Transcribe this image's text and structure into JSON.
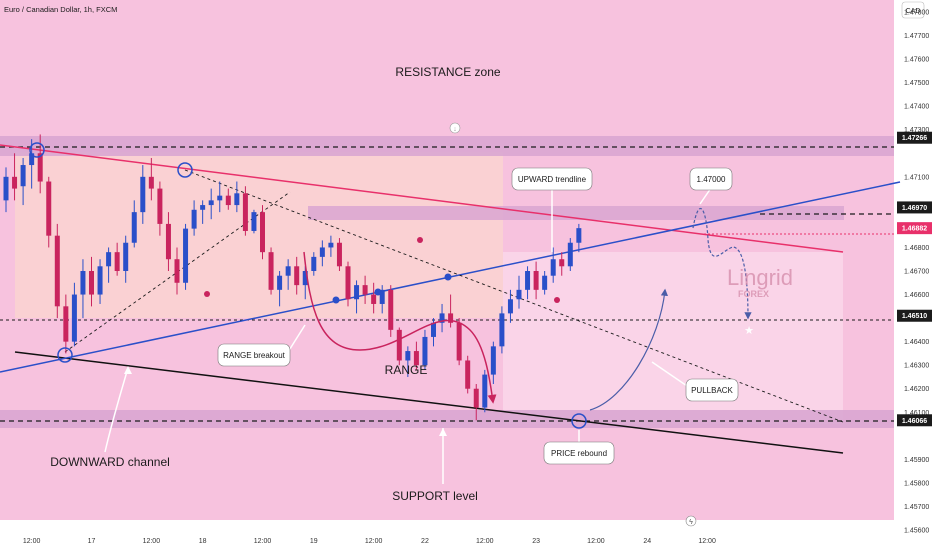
{
  "chart_data": {
    "type": "candlestick",
    "title": "Euro / Canadian Dollar, 1h, FXCM",
    "currency": "CAD",
    "watermark": {
      "brand": "Lingrid",
      "sub": "FOREX"
    },
    "ylim": [
      1.456,
      1.478
    ],
    "y_ticks": [
      "1.47800",
      "1.47700",
      "1.47600",
      "1.47500",
      "1.47400",
      "1.47300",
      "1.47100",
      "1.46800",
      "1.46700",
      "1.46600",
      "1.46400",
      "1.46300",
      "1.46200",
      "1.46100",
      "1.45900",
      "1.45800",
      "1.45700",
      "1.45600"
    ],
    "x_ticks": [
      {
        "label": "12:00",
        "i": 3
      },
      {
        "label": "17",
        "i": 10
      },
      {
        "label": "12:00",
        "i": 17
      },
      {
        "label": "18",
        "i": 23
      },
      {
        "label": "12:00",
        "i": 30
      },
      {
        "label": "19",
        "i": 36
      },
      {
        "label": "12:00",
        "i": 43
      },
      {
        "label": "22",
        "i": 49
      },
      {
        "label": "12:00",
        "i": 56
      },
      {
        "label": "23",
        "i": 62
      },
      {
        "label": "12:00",
        "i": 69
      },
      {
        "label": "24",
        "i": 75
      },
      {
        "label": "12:00",
        "i": 82
      }
    ],
    "price_labels": [
      {
        "value": 1.47266,
        "text": "1.47266",
        "color": "#1b1b1b"
      },
      {
        "value": 1.4697,
        "text": "1.46970",
        "color": "#1b1b1b"
      },
      {
        "value": 1.46882,
        "text": "1.46882",
        "color": "#e8306a"
      },
      {
        "value": 1.4651,
        "text": "1.46510",
        "color": "#1b1b1b"
      },
      {
        "value": 1.46066,
        "text": "1.46066",
        "color": "#1b1b1b"
      }
    ],
    "ohlc": [
      [
        1.47,
        1.4714,
        1.4695,
        1.471
      ],
      [
        1.471,
        1.472,
        1.47,
        1.4705
      ],
      [
        1.4706,
        1.4718,
        1.4698,
        1.4715
      ],
      [
        1.4715,
        1.4726,
        1.4705,
        1.472
      ],
      [
        1.472,
        1.4728,
        1.4703,
        1.4708
      ],
      [
        1.4708,
        1.471,
        1.468,
        1.4685
      ],
      [
        1.4685,
        1.469,
        1.465,
        1.4655
      ],
      [
        1.4655,
        1.466,
        1.4635,
        1.464
      ],
      [
        1.464,
        1.4665,
        1.4638,
        1.466
      ],
      [
        1.466,
        1.4675,
        1.465,
        1.467
      ],
      [
        1.467,
        1.4676,
        1.4655,
        1.466
      ],
      [
        1.466,
        1.4675,
        1.4656,
        1.4672
      ],
      [
        1.4672,
        1.468,
        1.4665,
        1.4678
      ],
      [
        1.4678,
        1.4682,
        1.4668,
        1.467
      ],
      [
        1.467,
        1.4685,
        1.4665,
        1.4682
      ],
      [
        1.4682,
        1.47,
        1.468,
        1.4695
      ],
      [
        1.4695,
        1.4715,
        1.469,
        1.471
      ],
      [
        1.471,
        1.4718,
        1.47,
        1.4705
      ],
      [
        1.4705,
        1.4708,
        1.4685,
        1.469
      ],
      [
        1.469,
        1.4695,
        1.467,
        1.4675
      ],
      [
        1.4675,
        1.468,
        1.466,
        1.4665
      ],
      [
        1.4665,
        1.469,
        1.4662,
        1.4688
      ],
      [
        1.4688,
        1.47,
        1.4685,
        1.4696
      ],
      [
        1.4696,
        1.47,
        1.469,
        1.4698
      ],
      [
        1.4698,
        1.4705,
        1.4692,
        1.47
      ],
      [
        1.47,
        1.4708,
        1.4695,
        1.4702
      ],
      [
        1.4702,
        1.4705,
        1.4696,
        1.4698
      ],
      [
        1.4698,
        1.4708,
        1.4695,
        1.4703
      ],
      [
        1.4703,
        1.4706,
        1.4685,
        1.4687
      ],
      [
        1.4687,
        1.4696,
        1.4686,
        1.4695
      ],
      [
        1.4695,
        1.4698,
        1.4675,
        1.4678
      ],
      [
        1.4678,
        1.468,
        1.466,
        1.4662
      ],
      [
        1.4662,
        1.467,
        1.4655,
        1.4668
      ],
      [
        1.4668,
        1.4675,
        1.4662,
        1.4672
      ],
      [
        1.4672,
        1.4676,
        1.466,
        1.4664
      ],
      [
        1.4664,
        1.4672,
        1.4658,
        1.467
      ],
      [
        1.467,
        1.4678,
        1.4668,
        1.4676
      ],
      [
        1.4676,
        1.4683,
        1.4672,
        1.468
      ],
      [
        1.468,
        1.4685,
        1.4676,
        1.4682
      ],
      [
        1.4682,
        1.4684,
        1.467,
        1.4672
      ],
      [
        1.4672,
        1.4674,
        1.4655,
        1.4658
      ],
      [
        1.4658,
        1.4666,
        1.4652,
        1.4664
      ],
      [
        1.4664,
        1.4668,
        1.4656,
        1.466
      ],
      [
        1.466,
        1.4665,
        1.4652,
        1.4656
      ],
      [
        1.4656,
        1.4664,
        1.4652,
        1.4662
      ],
      [
        1.4662,
        1.4664,
        1.4642,
        1.4645
      ],
      [
        1.4645,
        1.4646,
        1.463,
        1.4632
      ],
      [
        1.4632,
        1.4638,
        1.4625,
        1.4636
      ],
      [
        1.4636,
        1.464,
        1.4628,
        1.463
      ],
      [
        1.463,
        1.4645,
        1.4628,
        1.4642
      ],
      [
        1.4642,
        1.465,
        1.4638,
        1.4648
      ],
      [
        1.4648,
        1.4656,
        1.4644,
        1.4652
      ],
      [
        1.4652,
        1.466,
        1.4646,
        1.4648
      ],
      [
        1.4648,
        1.465,
        1.463,
        1.4632
      ],
      [
        1.4632,
        1.4634,
        1.4618,
        1.462
      ],
      [
        1.462,
        1.4622,
        1.46066,
        1.4612
      ],
      [
        1.4612,
        1.4628,
        1.461,
        1.4626
      ],
      [
        1.4626,
        1.464,
        1.4622,
        1.4638
      ],
      [
        1.4638,
        1.4655,
        1.4635,
        1.4652
      ],
      [
        1.4652,
        1.4662,
        1.4648,
        1.4658
      ],
      [
        1.4658,
        1.4668,
        1.4654,
        1.4662
      ],
      [
        1.4662,
        1.4672,
        1.4658,
        1.467
      ],
      [
        1.467,
        1.4674,
        1.4658,
        1.4662
      ],
      [
        1.4662,
        1.467,
        1.466,
        1.4668
      ],
      [
        1.4668,
        1.468,
        1.4665,
        1.4675
      ],
      [
        1.4675,
        1.4678,
        1.4668,
        1.4672
      ],
      [
        1.4672,
        1.4684,
        1.467,
        1.4682
      ],
      [
        1.4682,
        1.469,
        1.4678,
        1.46882
      ]
    ],
    "annotations": [
      {
        "text": "RESISTANCE zone",
        "kind": "plain"
      },
      {
        "text": "UPWARD trendline",
        "kind": "callout"
      },
      {
        "text": "1.47000",
        "kind": "callout"
      },
      {
        "text": "RANGE breakout",
        "kind": "callout"
      },
      {
        "text": "RANGE",
        "kind": "plain"
      },
      {
        "text": "PULLBACK",
        "kind": "callout"
      },
      {
        "text": "PRICE rebound",
        "kind": "callout"
      },
      {
        "text": "DOWNWARD channel",
        "kind": "plain"
      },
      {
        "text": "SUPPORT level",
        "kind": "plain"
      }
    ],
    "colors": {
      "background": "#f7c2de",
      "up": "#2a4fc9",
      "down": "#c9245e",
      "zone": "#d9a6d1",
      "trend_blue": "#2a4fc9",
      "trend_red": "#e8306a",
      "channel_black": "#111111",
      "watermark": "#d48aa8"
    }
  }
}
